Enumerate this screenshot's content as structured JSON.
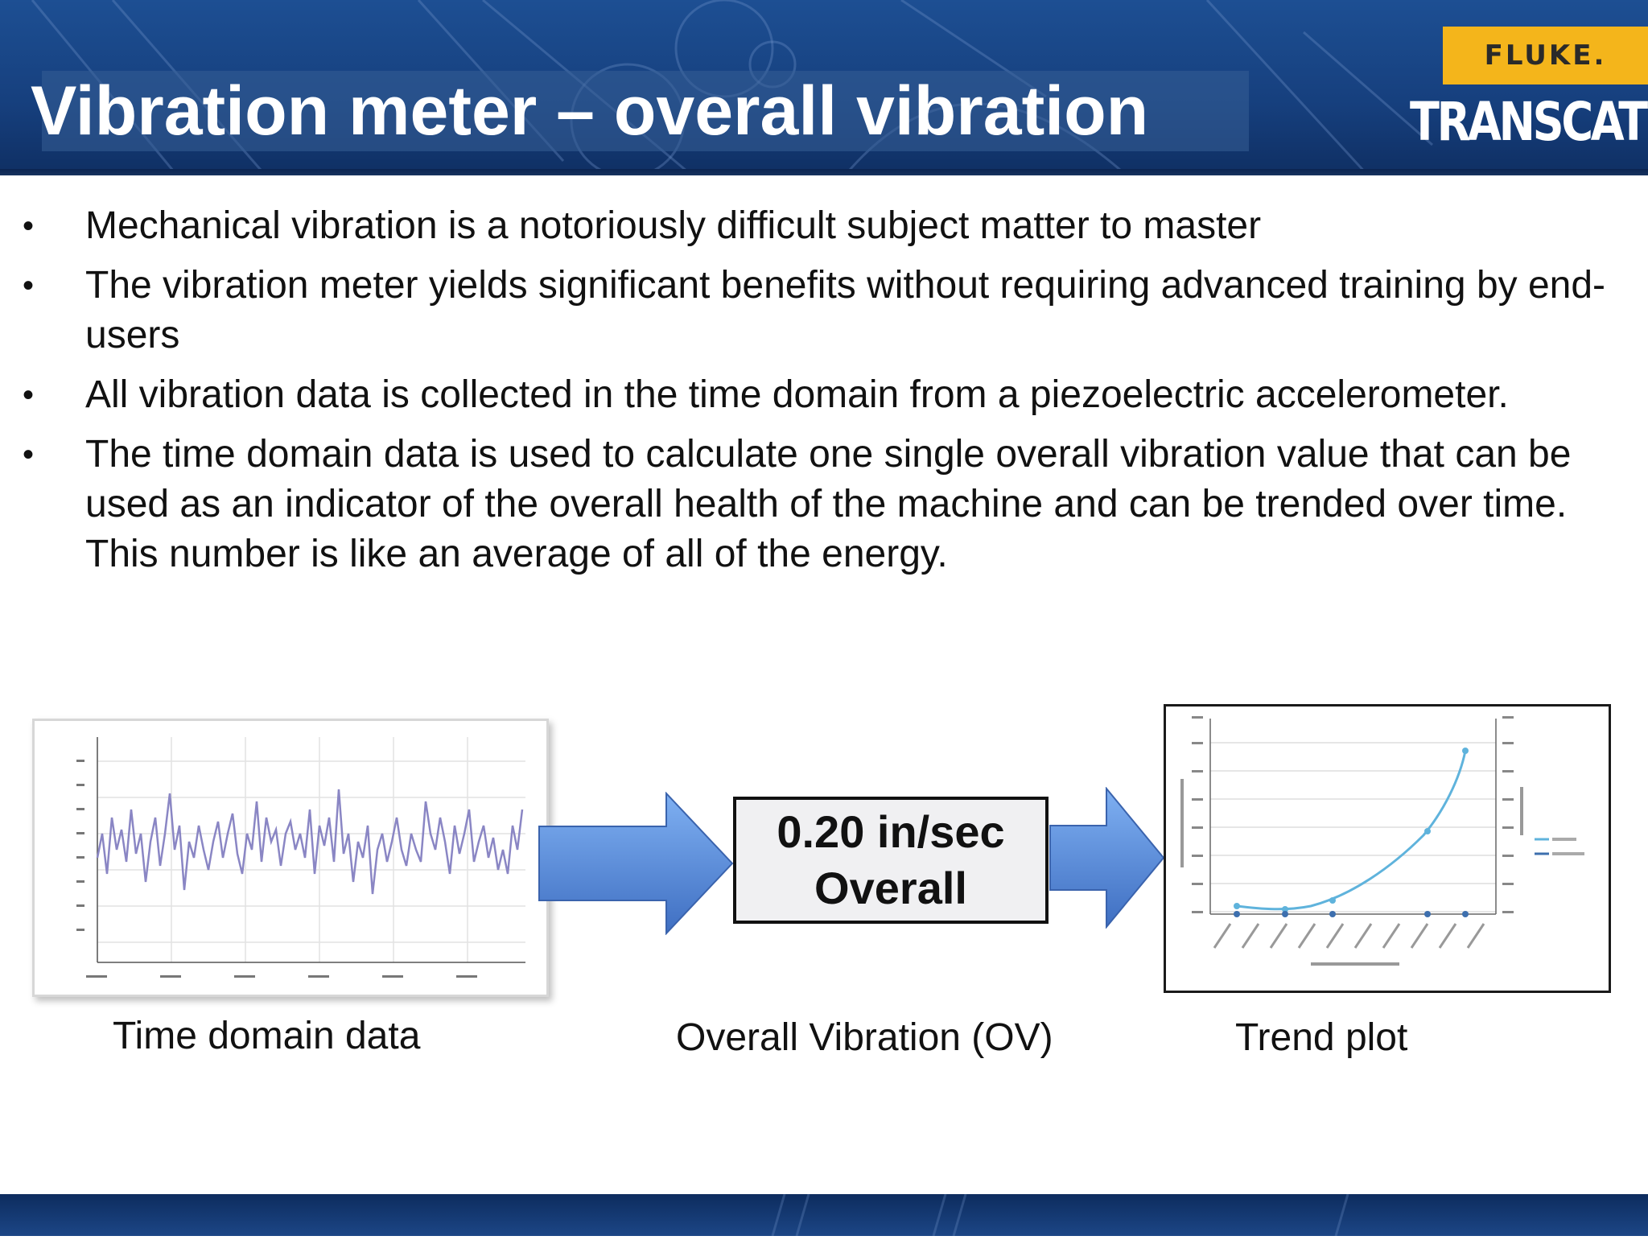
{
  "header": {
    "title": "Vibration meter – overall vibration",
    "fluke_logo": "FLUKE.",
    "transcat_logo": "TRANSCAT"
  },
  "bullets": [
    "Mechanical vibration is a notoriously difficult subject matter to master",
    "The vibration meter yields significant benefits without requiring advanced training by end-users",
    "All vibration data is collected in the time domain from a piezoelectric accelerometer.",
    "The time domain data is used to calculate one single overall vibration value that can be used as an indicator of the overall health of the machine and can be trended over time.  This number is like an average of all of the energy."
  ],
  "bullet_glyph": "•",
  "overall_box": {
    "line1": "0.20 in/sec",
    "line2": "Overall"
  },
  "captions": {
    "time_domain": "Time domain data",
    "overall": "Overall Vibration (OV)",
    "trend": "Trend plot"
  },
  "colors": {
    "header_blue": "#1d4f93",
    "fluke_yellow": "#f4b51b",
    "arrow_blue": "#5b8fdb",
    "waveform": "#8a86c4",
    "trend_line": "#5fb3dc"
  },
  "icons": {
    "arrow_left": "right-arrow-icon",
    "arrow_right": "right-arrow-icon"
  }
}
